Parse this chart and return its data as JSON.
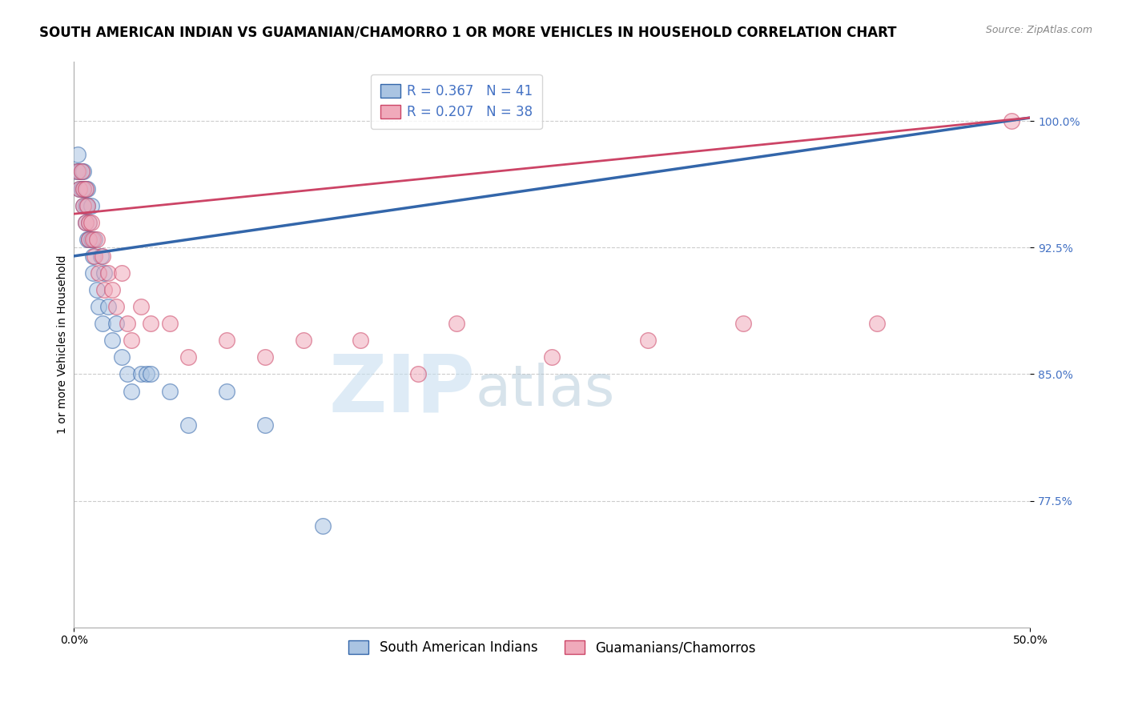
{
  "title": "SOUTH AMERICAN INDIAN VS GUAMANIAN/CHAMORRO 1 OR MORE VEHICLES IN HOUSEHOLD CORRELATION CHART",
  "source": "Source: ZipAtlas.com",
  "ylabel": "1 or more Vehicles in Household",
  "ytick_labels": [
    "100.0%",
    "92.5%",
    "85.0%",
    "77.5%"
  ],
  "ytick_values": [
    1.0,
    0.925,
    0.85,
    0.775
  ],
  "xmin": 0.0,
  "xmax": 0.5,
  "ymin": 0.7,
  "ymax": 1.035,
  "blue_R": 0.367,
  "blue_N": 41,
  "pink_R": 0.207,
  "pink_N": 38,
  "blue_color": "#aac4e2",
  "blue_line_color": "#3366aa",
  "pink_color": "#f0aabb",
  "pink_line_color": "#cc4466",
  "legend_label_blue": "South American Indians",
  "legend_label_pink": "Guamanians/Chamorros",
  "blue_points_x": [
    0.001,
    0.002,
    0.003,
    0.003,
    0.004,
    0.004,
    0.005,
    0.005,
    0.005,
    0.006,
    0.006,
    0.006,
    0.007,
    0.007,
    0.007,
    0.008,
    0.008,
    0.009,
    0.009,
    0.01,
    0.01,
    0.011,
    0.012,
    0.013,
    0.014,
    0.015,
    0.016,
    0.018,
    0.02,
    0.022,
    0.025,
    0.028,
    0.03,
    0.035,
    0.038,
    0.04,
    0.05,
    0.06,
    0.08,
    0.1,
    0.13
  ],
  "blue_points_y": [
    0.97,
    0.98,
    0.96,
    0.97,
    0.97,
    0.96,
    0.97,
    0.96,
    0.95,
    0.96,
    0.95,
    0.94,
    0.96,
    0.95,
    0.93,
    0.94,
    0.93,
    0.95,
    0.93,
    0.92,
    0.91,
    0.93,
    0.9,
    0.89,
    0.92,
    0.88,
    0.91,
    0.89,
    0.87,
    0.88,
    0.86,
    0.85,
    0.84,
    0.85,
    0.85,
    0.85,
    0.84,
    0.82,
    0.84,
    0.82,
    0.76
  ],
  "pink_points_x": [
    0.002,
    0.003,
    0.004,
    0.005,
    0.005,
    0.006,
    0.006,
    0.007,
    0.008,
    0.008,
    0.009,
    0.01,
    0.011,
    0.012,
    0.013,
    0.015,
    0.016,
    0.018,
    0.02,
    0.022,
    0.025,
    0.028,
    0.03,
    0.035,
    0.04,
    0.05,
    0.06,
    0.08,
    0.1,
    0.12,
    0.15,
    0.18,
    0.2,
    0.25,
    0.3,
    0.35,
    0.42,
    0.49
  ],
  "pink_points_y": [
    0.97,
    0.96,
    0.97,
    0.96,
    0.95,
    0.96,
    0.94,
    0.95,
    0.94,
    0.93,
    0.94,
    0.93,
    0.92,
    0.93,
    0.91,
    0.92,
    0.9,
    0.91,
    0.9,
    0.89,
    0.91,
    0.88,
    0.87,
    0.89,
    0.88,
    0.88,
    0.86,
    0.87,
    0.86,
    0.87,
    0.87,
    0.85,
    0.88,
    0.86,
    0.87,
    0.88,
    0.88,
    1.0
  ],
  "watermark_zip": "ZIP",
  "watermark_atlas": "atlas",
  "background_color": "#ffffff",
  "grid_color": "#cccccc",
  "title_fontsize": 12,
  "axis_label_fontsize": 10,
  "tick_fontsize": 10,
  "legend_fontsize": 12
}
